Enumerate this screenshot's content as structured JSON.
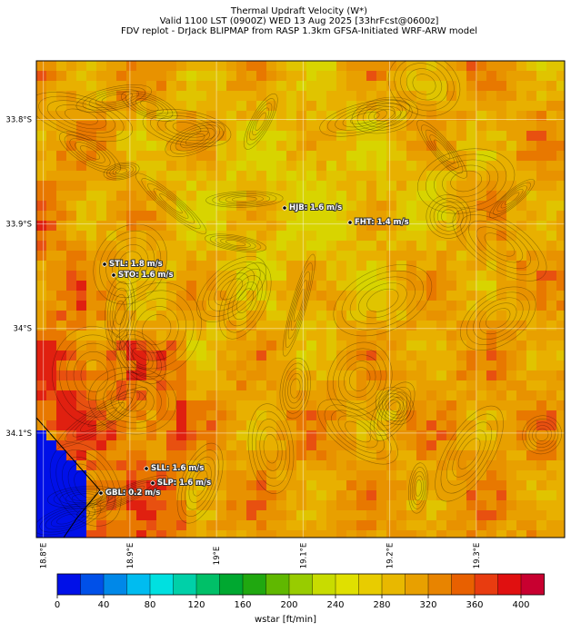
{
  "title": [
    "Thermal Updraft Velocity (W*)",
    "Valid 1100 LST (0900Z) WED 13 Aug 2025 [33hrFcst@0600z]",
    "FDV replot - DrJack BLIPMAP from RASP 1.3km GFSA-Initiated WRF-ARW model"
  ],
  "map": {
    "xlim": [
      18.792,
      19.402
    ],
    "ylim": [
      -34.2,
      -33.744
    ],
    "xticks": [
      {
        "value": 18.8,
        "label": "18.8°E"
      },
      {
        "value": 18.9,
        "label": "18.9°E"
      },
      {
        "value": 19.0,
        "label": "19°E"
      },
      {
        "value": 19.1,
        "label": "19.1°E"
      },
      {
        "value": 19.2,
        "label": "19.2°E"
      },
      {
        "value": 19.3,
        "label": "19.3°E"
      }
    ],
    "yticks": [
      {
        "value": -33.8,
        "label": "33.8°S"
      },
      {
        "value": -33.9,
        "label": "33.9°S"
      },
      {
        "value": -34.0,
        "label": "34°S"
      },
      {
        "value": -34.1,
        "label": "34.1°S"
      }
    ],
    "grid": true,
    "stations": [
      "HJB: 1.6 m/s",
      "FHT: 1.4 m/s",
      "STL: 1.8 m/s",
      "STO: 1.6 m/s",
      "SLL: 1.6 m/s",
      "SLP: 1.6 m/s",
      "GBL: 0.2 m/s"
    ]
  },
  "colorbar": {
    "label": "wstar [ft/min]",
    "lim": [
      0,
      420
    ],
    "ticks": [
      0,
      40,
      80,
      120,
      160,
      200,
      240,
      280,
      320,
      360,
      400
    ],
    "colors": [
      "#0010e8",
      "#0050e8",
      "#0088e8",
      "#00bcf0",
      "#00e0e0",
      "#00d0a8",
      "#00c068",
      "#00a830",
      "#20a810",
      "#60b800",
      "#98cc00",
      "#c8dc00",
      "#e0e000",
      "#e8cc00",
      "#e8b800",
      "#e8a000",
      "#e88400",
      "#e86000",
      "#e83c10",
      "#e01010",
      "#c80030"
    ]
  }
}
